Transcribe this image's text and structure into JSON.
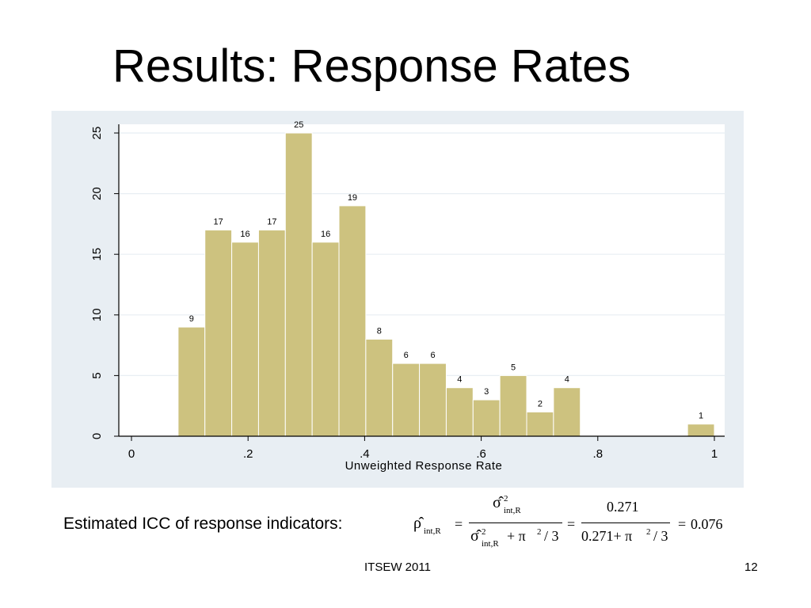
{
  "slide": {
    "title": "Results: Response Rates",
    "icc_label": "Estimated ICC of response indicators:",
    "footer": "ITSEW 2011",
    "page_number": "12"
  },
  "formula": {
    "lhs": "ρ̂",
    "lhs_sub": "int,R",
    "eq": "=",
    "num_sigma": "σ̂",
    "num_sup": "2",
    "num_sub": "int,R",
    "den_sigma": "σ̂",
    "den_sup": "2",
    "den_sub": "int,R",
    "den_rest": "+ π",
    "den_pi_sup": "2",
    "den_div": "/ 3",
    "eq2": "=",
    "num2": "0.271",
    "den2_a": "0.271+ π",
    "den2_sup": "2",
    "den2_div": "/ 3",
    "eq3": "=",
    "result": "0.076"
  },
  "chart_data": {
    "type": "bar",
    "subtype": "histogram",
    "xlabel": "Unweighted Response Rate",
    "ylabel": "",
    "xlim": [
      0,
      1
    ],
    "ylim": [
      0,
      25
    ],
    "xticks": [
      0,
      0.2,
      0.4,
      0.6,
      0.8,
      1
    ],
    "xtick_labels": [
      "0",
      ".2",
      ".4",
      ".6",
      ".8",
      "1"
    ],
    "yticks": [
      0,
      5,
      10,
      15,
      20,
      25
    ],
    "ytick_labels": [
      "0",
      "5",
      "10",
      "15",
      "20",
      "25"
    ],
    "bin_width": 0.046,
    "bins": [
      {
        "start": 0.08,
        "value": 9
      },
      {
        "start": 0.126,
        "value": 17
      },
      {
        "start": 0.172,
        "value": 16
      },
      {
        "start": 0.218,
        "value": 17
      },
      {
        "start": 0.264,
        "value": 25
      },
      {
        "start": 0.31,
        "value": 16
      },
      {
        "start": 0.356,
        "value": 19
      },
      {
        "start": 0.402,
        "value": 8
      },
      {
        "start": 0.448,
        "value": 6
      },
      {
        "start": 0.494,
        "value": 6
      },
      {
        "start": 0.54,
        "value": 4
      },
      {
        "start": 0.586,
        "value": 3
      },
      {
        "start": 0.632,
        "value": 5
      },
      {
        "start": 0.678,
        "value": 2
      },
      {
        "start": 0.724,
        "value": 4
      },
      {
        "start": 0.954,
        "value": 1
      }
    ],
    "grid": true,
    "colors": {
      "bar_fill": "#CDC27F",
      "bar_stroke": "#ffffff",
      "outer_bg": "#E8EEF3",
      "plot_bg": "#ffffff",
      "grid": "#E8EEF3"
    }
  }
}
